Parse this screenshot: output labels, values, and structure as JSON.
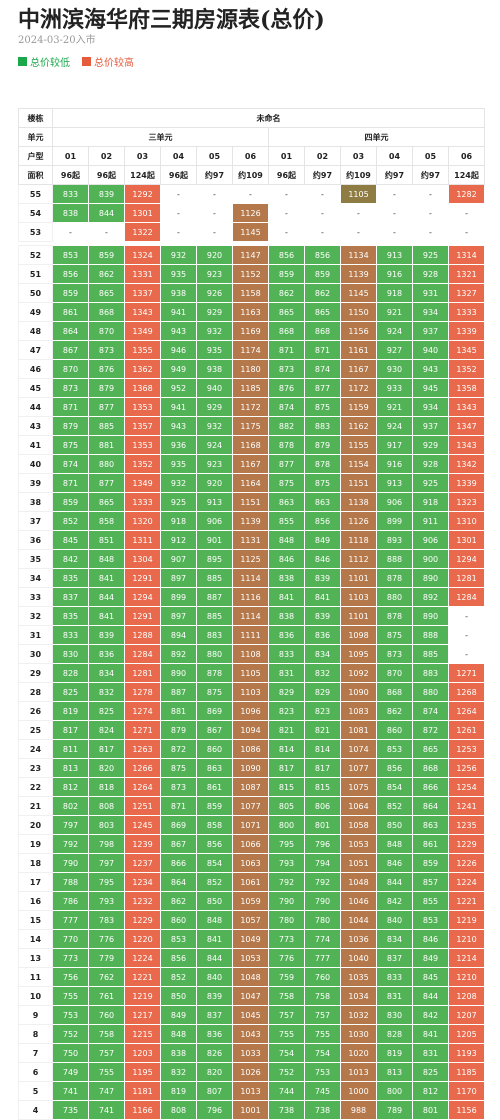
{
  "title": "中洲滨海华府三期房源表(总价)",
  "date": "2024-03-20入市",
  "legend": {
    "low": "总价较低",
    "high": "总价较高",
    "low_color": "#1aa84a",
    "high_color": "#e55b3c"
  },
  "table": {
    "labels": {
      "building": "楼栋",
      "unit": "单元",
      "type": "户型",
      "area": "面积"
    },
    "building": "未命名",
    "units": [
      "三单元",
      "四单元"
    ],
    "types": [
      "01",
      "02",
      "03",
      "04",
      "05",
      "06",
      "01",
      "02",
      "03",
      "04",
      "05",
      "06"
    ],
    "areas": [
      "96起",
      "96起",
      "124起",
      "96起",
      "约97",
      "约109",
      "96起",
      "约97",
      "约109",
      "约97",
      "约97",
      "124起"
    ],
    "upper": [
      {
        "floor": "55",
        "v": [
          "833",
          "839",
          "1292",
          "-",
          "-",
          "-",
          "-",
          "-",
          "1105",
          "-",
          "-",
          "1282"
        ],
        "c": [
          "g",
          "g",
          "o",
          "e",
          "e",
          "e",
          "e",
          "e",
          "v",
          "e",
          "e",
          "o"
        ]
      },
      {
        "floor": "54",
        "v": [
          "838",
          "844",
          "1301",
          "-",
          "-",
          "1126",
          "-",
          "-",
          "-",
          "-",
          "-",
          "-"
        ],
        "c": [
          "g",
          "g",
          "o",
          "e",
          "e",
          "k",
          "e",
          "e",
          "e",
          "e",
          "e",
          "e"
        ]
      },
      {
        "floor": "53",
        "v": [
          "-",
          "-",
          "1322",
          "-",
          "-",
          "1145",
          "-",
          "-",
          "-",
          "-",
          "-",
          "-"
        ],
        "c": [
          "e",
          "e",
          "o",
          "e",
          "e",
          "k",
          "e",
          "e",
          "e",
          "e",
          "e",
          "e"
        ]
      }
    ],
    "floors": [
      {
        "floor": "52",
        "v": [
          "853",
          "859",
          "1324",
          "932",
          "920",
          "1147",
          "856",
          "856",
          "1134",
          "913",
          "925",
          "1314"
        ]
      },
      {
        "floor": "51",
        "v": [
          "856",
          "862",
          "1331",
          "935",
          "923",
          "1152",
          "859",
          "859",
          "1139",
          "916",
          "928",
          "1321"
        ]
      },
      {
        "floor": "50",
        "v": [
          "859",
          "865",
          "1337",
          "938",
          "926",
          "1158",
          "862",
          "862",
          "1145",
          "918",
          "931",
          "1327"
        ]
      },
      {
        "floor": "49",
        "v": [
          "861",
          "868",
          "1343",
          "941",
          "929",
          "1163",
          "865",
          "865",
          "1150",
          "921",
          "934",
          "1333"
        ]
      },
      {
        "floor": "48",
        "v": [
          "864",
          "870",
          "1349",
          "943",
          "932",
          "1169",
          "868",
          "868",
          "1156",
          "924",
          "937",
          "1339"
        ]
      },
      {
        "floor": "47",
        "v": [
          "867",
          "873",
          "1355",
          "946",
          "935",
          "1174",
          "871",
          "871",
          "1161",
          "927",
          "940",
          "1345"
        ]
      },
      {
        "floor": "46",
        "v": [
          "870",
          "876",
          "1362",
          "949",
          "938",
          "1180",
          "873",
          "874",
          "1167",
          "930",
          "943",
          "1352"
        ]
      },
      {
        "floor": "45",
        "v": [
          "873",
          "879",
          "1368",
          "952",
          "940",
          "1185",
          "876",
          "877",
          "1172",
          "933",
          "945",
          "1358"
        ]
      },
      {
        "floor": "44",
        "v": [
          "871",
          "877",
          "1353",
          "941",
          "929",
          "1172",
          "874",
          "875",
          "1159",
          "921",
          "934",
          "1343"
        ]
      },
      {
        "floor": "43",
        "v": [
          "879",
          "885",
          "1357",
          "943",
          "932",
          "1175",
          "882",
          "883",
          "1162",
          "924",
          "937",
          "1347"
        ]
      },
      {
        "floor": "41",
        "v": [
          "875",
          "881",
          "1353",
          "936",
          "924",
          "1168",
          "878",
          "879",
          "1155",
          "917",
          "929",
          "1343"
        ]
      },
      {
        "floor": "40",
        "v": [
          "874",
          "880",
          "1352",
          "935",
          "923",
          "1167",
          "877",
          "878",
          "1154",
          "916",
          "928",
          "1342"
        ]
      },
      {
        "floor": "39",
        "v": [
          "871",
          "877",
          "1349",
          "932",
          "920",
          "1164",
          "875",
          "875",
          "1151",
          "913",
          "925",
          "1339"
        ]
      },
      {
        "floor": "38",
        "v": [
          "859",
          "865",
          "1333",
          "925",
          "913",
          "1151",
          "863",
          "863",
          "1138",
          "906",
          "918",
          "1323"
        ]
      },
      {
        "floor": "37",
        "v": [
          "852",
          "858",
          "1320",
          "918",
          "906",
          "1139",
          "855",
          "856",
          "1126",
          "899",
          "911",
          "1310"
        ]
      },
      {
        "floor": "36",
        "v": [
          "845",
          "851",
          "1311",
          "912",
          "901",
          "1131",
          "848",
          "849",
          "1118",
          "893",
          "906",
          "1301"
        ]
      },
      {
        "floor": "35",
        "v": [
          "842",
          "848",
          "1304",
          "907",
          "895",
          "1125",
          "846",
          "846",
          "1112",
          "888",
          "900",
          "1294"
        ]
      },
      {
        "floor": "34",
        "v": [
          "835",
          "841",
          "1291",
          "897",
          "885",
          "1114",
          "838",
          "839",
          "1101",
          "878",
          "890",
          "1281"
        ]
      },
      {
        "floor": "33",
        "v": [
          "837",
          "844",
          "1294",
          "899",
          "887",
          "1116",
          "841",
          "841",
          "1103",
          "880",
          "892",
          "1284"
        ]
      },
      {
        "floor": "32",
        "v": [
          "835",
          "841",
          "1291",
          "897",
          "885",
          "1114",
          "838",
          "839",
          "1101",
          "878",
          "890",
          "-"
        ]
      },
      {
        "floor": "31",
        "v": [
          "833",
          "839",
          "1288",
          "894",
          "883",
          "1111",
          "836",
          "836",
          "1098",
          "875",
          "888",
          "-"
        ]
      },
      {
        "floor": "30",
        "v": [
          "830",
          "836",
          "1284",
          "892",
          "880",
          "1108",
          "833",
          "834",
          "1095",
          "873",
          "885",
          "-"
        ]
      },
      {
        "floor": "29",
        "v": [
          "828",
          "834",
          "1281",
          "890",
          "878",
          "1105",
          "831",
          "832",
          "1092",
          "870",
          "883",
          "1271"
        ]
      },
      {
        "floor": "28",
        "v": [
          "825",
          "832",
          "1278",
          "887",
          "875",
          "1103",
          "829",
          "829",
          "1090",
          "868",
          "880",
          "1268"
        ]
      },
      {
        "floor": "26",
        "v": [
          "819",
          "825",
          "1274",
          "881",
          "869",
          "1096",
          "823",
          "823",
          "1083",
          "862",
          "874",
          "1264"
        ]
      },
      {
        "floor": "25",
        "v": [
          "817",
          "824",
          "1271",
          "879",
          "867",
          "1094",
          "821",
          "821",
          "1081",
          "860",
          "872",
          "1261"
        ]
      },
      {
        "floor": "24",
        "v": [
          "811",
          "817",
          "1263",
          "872",
          "860",
          "1086",
          "814",
          "814",
          "1074",
          "853",
          "865",
          "1253"
        ]
      },
      {
        "floor": "23",
        "v": [
          "813",
          "820",
          "1266",
          "875",
          "863",
          "1090",
          "817",
          "817",
          "1077",
          "856",
          "868",
          "1256"
        ]
      },
      {
        "floor": "22",
        "v": [
          "812",
          "818",
          "1264",
          "873",
          "861",
          "1087",
          "815",
          "815",
          "1075",
          "854",
          "866",
          "1254"
        ]
      },
      {
        "floor": "21",
        "v": [
          "802",
          "808",
          "1251",
          "871",
          "859",
          "1077",
          "805",
          "806",
          "1064",
          "852",
          "864",
          "1241"
        ]
      },
      {
        "floor": "20",
        "v": [
          "797",
          "803",
          "1245",
          "869",
          "858",
          "1071",
          "800",
          "801",
          "1058",
          "850",
          "863",
          "1235"
        ]
      },
      {
        "floor": "19",
        "v": [
          "792",
          "798",
          "1239",
          "867",
          "856",
          "1066",
          "795",
          "796",
          "1053",
          "848",
          "861",
          "1229"
        ]
      },
      {
        "floor": "18",
        "v": [
          "790",
          "797",
          "1237",
          "866",
          "854",
          "1063",
          "793",
          "794",
          "1051",
          "846",
          "859",
          "1226"
        ]
      },
      {
        "floor": "17",
        "v": [
          "788",
          "795",
          "1234",
          "864",
          "852",
          "1061",
          "792",
          "792",
          "1048",
          "844",
          "857",
          "1224"
        ]
      },
      {
        "floor": "16",
        "v": [
          "786",
          "793",
          "1232",
          "862",
          "850",
          "1059",
          "790",
          "790",
          "1046",
          "842",
          "855",
          "1221"
        ]
      },
      {
        "floor": "15",
        "v": [
          "777",
          "783",
          "1229",
          "860",
          "848",
          "1057",
          "780",
          "780",
          "1044",
          "840",
          "853",
          "1219"
        ]
      },
      {
        "floor": "14",
        "v": [
          "770",
          "776",
          "1220",
          "853",
          "841",
          "1049",
          "773",
          "774",
          "1036",
          "834",
          "846",
          "1210"
        ]
      },
      {
        "floor": "13",
        "v": [
          "773",
          "779",
          "1224",
          "856",
          "844",
          "1053",
          "776",
          "777",
          "1040",
          "837",
          "849",
          "1214"
        ]
      },
      {
        "floor": "11",
        "v": [
          "756",
          "762",
          "1221",
          "852",
          "840",
          "1048",
          "759",
          "760",
          "1035",
          "833",
          "845",
          "1210"
        ]
      },
      {
        "floor": "10",
        "v": [
          "755",
          "761",
          "1219",
          "850",
          "839",
          "1047",
          "758",
          "758",
          "1034",
          "831",
          "844",
          "1208"
        ]
      },
      {
        "floor": "9",
        "v": [
          "753",
          "760",
          "1217",
          "849",
          "837",
          "1045",
          "757",
          "757",
          "1032",
          "830",
          "842",
          "1207"
        ]
      },
      {
        "floor": "8",
        "v": [
          "752",
          "758",
          "1215",
          "848",
          "836",
          "1043",
          "755",
          "755",
          "1030",
          "828",
          "841",
          "1205"
        ]
      },
      {
        "floor": "7",
        "v": [
          "750",
          "757",
          "1203",
          "838",
          "826",
          "1033",
          "754",
          "754",
          "1020",
          "819",
          "831",
          "1193"
        ]
      },
      {
        "floor": "6",
        "v": [
          "749",
          "755",
          "1195",
          "832",
          "820",
          "1026",
          "752",
          "753",
          "1013",
          "813",
          "825",
          "1185"
        ]
      },
      {
        "floor": "5",
        "v": [
          "741",
          "747",
          "1181",
          "819",
          "807",
          "1013",
          "744",
          "745",
          "1000",
          "800",
          "812",
          "1170"
        ]
      },
      {
        "floor": "4",
        "v": [
          "735",
          "741",
          "1166",
          "808",
          "796",
          "1001",
          "738",
          "738",
          "988",
          "789",
          "801",
          "1156"
        ]
      }
    ],
    "column_colors": [
      "g",
      "g",
      "o",
      "g",
      "g",
      "k",
      "g",
      "g",
      "k",
      "g",
      "g",
      "o"
    ]
  }
}
